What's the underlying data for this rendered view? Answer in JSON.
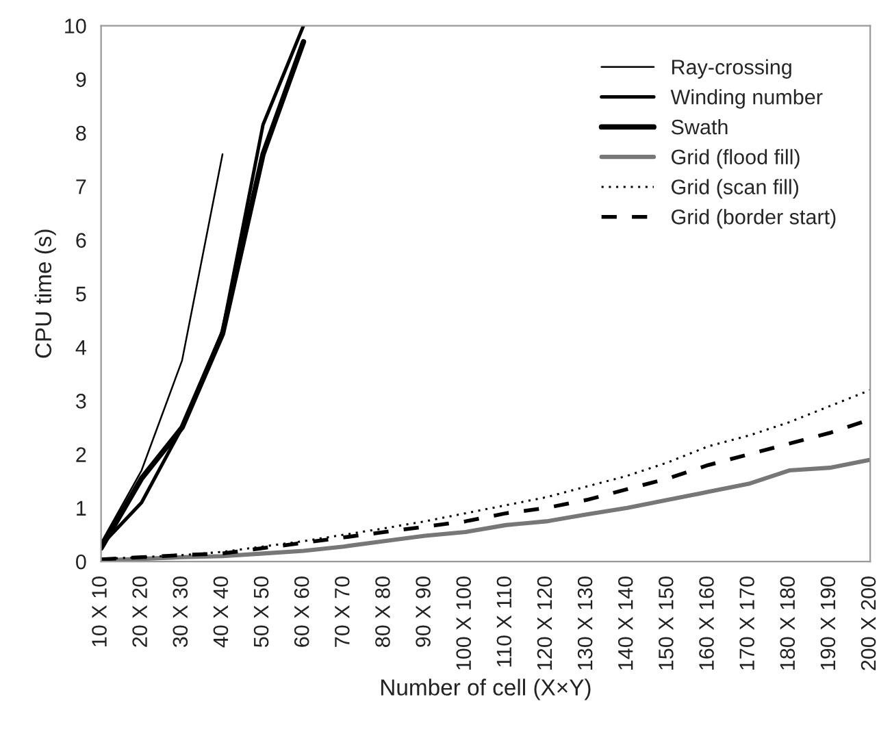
{
  "chart_data": {
    "type": "line",
    "xlabel": "Number of cell (X×Y)",
    "ylabel": "CPU time (s)",
    "categories": [
      "10 X 10",
      "20 X 20",
      "30 X 30",
      "40 X 40",
      "50 X 50",
      "60 X 60",
      "70 X 70",
      "80 X 80",
      "90 X 90",
      "100 X 100",
      "110 X 110",
      "120 X 120",
      "130 X 130",
      "140 X 140",
      "150 X 150",
      "160 X 160",
      "170 X 170",
      "180 X 180",
      "190 X 190",
      "200 X 200"
    ],
    "series": [
      {
        "name": "Ray-crossing",
        "color": "#000000",
        "line_style": "solid",
        "values": [
          0.35,
          1.7,
          3.75,
          7.6,
          null,
          null,
          null,
          null,
          null,
          null,
          null,
          null,
          null,
          null,
          null,
          null,
          null,
          null,
          null,
          null
        ]
      },
      {
        "name": "Winding number",
        "color": "#000000",
        "line_style": "solid",
        "values": [
          0.3,
          1.1,
          2.5,
          4.3,
          8.15,
          10.0,
          null,
          null,
          null,
          null,
          null,
          null,
          null,
          null,
          null,
          null,
          null,
          null,
          null,
          null
        ]
      },
      {
        "name": "Swath",
        "color": "#000000",
        "line_style": "solid",
        "values": [
          0.25,
          1.55,
          2.5,
          4.25,
          7.6,
          9.7,
          null,
          null,
          null,
          null,
          null,
          null,
          null,
          null,
          null,
          null,
          null,
          null,
          null,
          null
        ]
      },
      {
        "name": "Grid (flood fill)",
        "color": "#777777",
        "line_style": "solid",
        "values": [
          0.02,
          0.05,
          0.08,
          0.1,
          0.15,
          0.2,
          0.28,
          0.38,
          0.48,
          0.55,
          0.68,
          0.75,
          0.88,
          1.0,
          1.15,
          1.3,
          1.45,
          1.7,
          1.75,
          1.9
        ]
      },
      {
        "name": "Grid (scan fill)",
        "color": "#000000",
        "line_style": "dotted",
        "values": [
          0.05,
          0.08,
          0.12,
          0.18,
          0.28,
          0.38,
          0.5,
          0.62,
          0.75,
          0.9,
          1.05,
          1.2,
          1.4,
          1.6,
          1.85,
          2.15,
          2.35,
          2.6,
          2.9,
          3.2
        ]
      },
      {
        "name": "Grid (border start)",
        "color": "#000000",
        "line_style": "dashed",
        "values": [
          0.04,
          0.08,
          0.12,
          0.15,
          0.25,
          0.35,
          0.45,
          0.55,
          0.65,
          0.75,
          0.9,
          1.0,
          1.15,
          1.35,
          1.55,
          1.8,
          2.0,
          2.2,
          2.4,
          2.65
        ]
      }
    ],
    "ylim": [
      0,
      10
    ],
    "yticks": [
      0,
      1,
      2,
      3,
      4,
      5,
      6,
      7,
      8,
      9,
      10
    ],
    "grid": false,
    "legend": "top right"
  }
}
